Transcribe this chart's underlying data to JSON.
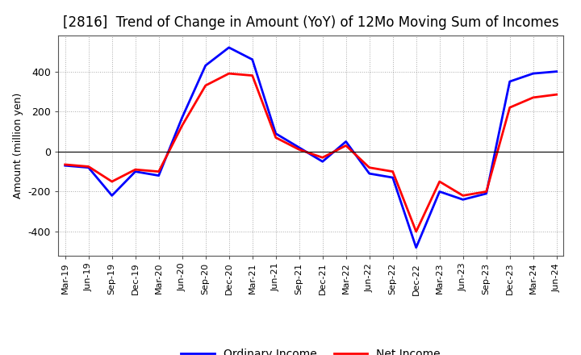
{
  "title": "[2816]  Trend of Change in Amount (YoY) of 12Mo Moving Sum of Incomes",
  "ylabel": "Amount (million yen)",
  "x_labels": [
    "Mar-19",
    "Jun-19",
    "Sep-19",
    "Dec-19",
    "Mar-20",
    "Jun-20",
    "Sep-20",
    "Dec-20",
    "Mar-21",
    "Jun-21",
    "Sep-21",
    "Dec-21",
    "Mar-22",
    "Jun-22",
    "Sep-22",
    "Dec-22",
    "Mar-23",
    "Jun-23",
    "Sep-23",
    "Dec-23",
    "Mar-24",
    "Jun-24"
  ],
  "ordinary_income": [
    -70,
    -80,
    -220,
    -100,
    -120,
    170,
    430,
    520,
    460,
    90,
    20,
    -50,
    50,
    -110,
    -130,
    -480,
    -200,
    -240,
    -210,
    350,
    390,
    400
  ],
  "net_income": [
    -65,
    -75,
    -150,
    -90,
    -100,
    130,
    330,
    390,
    380,
    70,
    10,
    -30,
    30,
    -80,
    -100,
    -400,
    -150,
    -220,
    -200,
    220,
    270,
    285
  ],
  "ordinary_color": "#0000ff",
  "net_color": "#ff0000",
  "ylim": [
    -520,
    580
  ],
  "yticks": [
    -400,
    -200,
    0,
    200,
    400
  ],
  "grid_color": "#aaaaaa",
  "background_color": "#ffffff",
  "title_fontsize": 12,
  "legend_labels": [
    "Ordinary Income",
    "Net Income"
  ]
}
